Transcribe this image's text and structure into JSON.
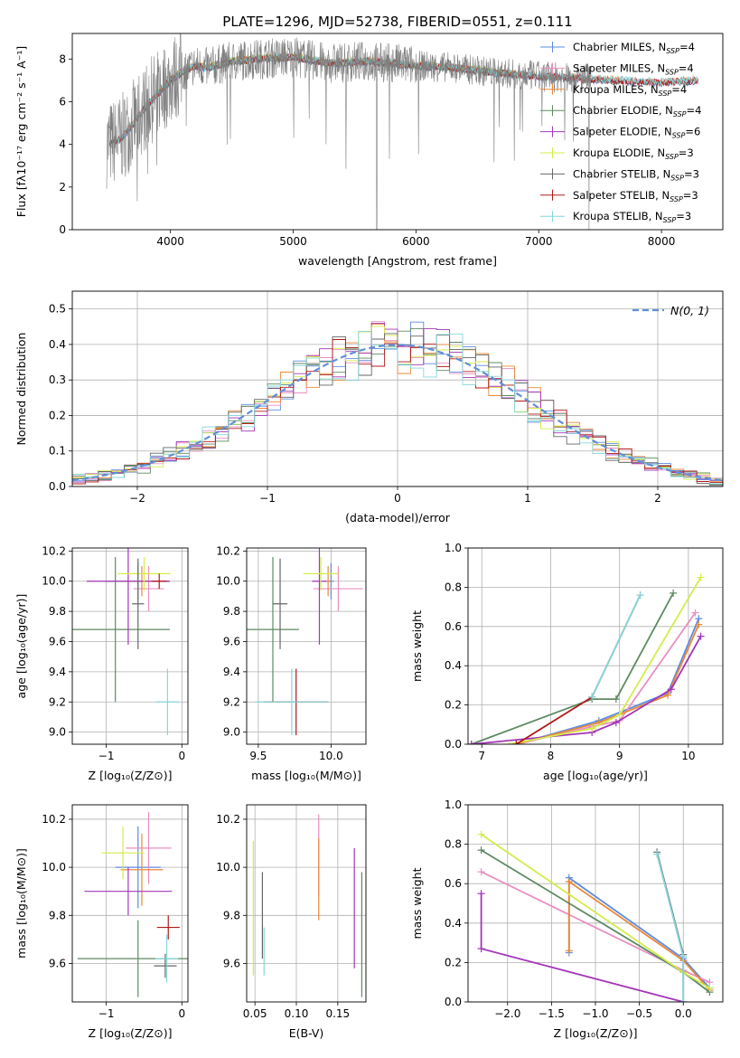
{
  "title": "PLATE=1296, MJD=52738, FIBERID=0551, z=0.111",
  "colors": {
    "chabrier_miles": "#5b8ce0",
    "salpeter_miles": "#e98fc0",
    "kroupa_miles": "#e8893a",
    "chabrier_elodie": "#5e8a62",
    "salpeter_elodie": "#a236b8",
    "kroupa_elodie": "#d4ec4a",
    "chabrier_stelib": "#666666",
    "salpeter_stelib": "#b01a1a",
    "kroupa_stelib": "#86d7da",
    "gauss": "#6090d8"
  },
  "chart_data": [
    {
      "id": "spectrum",
      "type": "line",
      "title": "",
      "xlabel": "wavelength [Angstrom, rest frame]",
      "ylabel": "Flux [fλ10⁻¹⁷ erg cm⁻² s⁻¹ A⁻¹]",
      "xlim": [
        3200,
        8500
      ],
      "ylim": [
        0,
        9.2
      ],
      "xticks": [
        4000,
        5000,
        6000,
        7000,
        8000
      ],
      "yticks": [
        0,
        2,
        4,
        6,
        8
      ],
      "grid": false,
      "legend_position": "right",
      "legend": [
        {
          "label": "Chabrier MILES, N",
          "sub": "SSP",
          "n": "4",
          "color_key": "chabrier_miles"
        },
        {
          "label": "Salpeter MILES, N",
          "sub": "SSP",
          "n": "4",
          "color_key": "salpeter_miles"
        },
        {
          "label": "Kroupa MILES, N",
          "sub": "SSP",
          "n": "4",
          "color_key": "kroupa_miles"
        },
        {
          "label": "Chabrier ELODIE, N",
          "sub": "SSP",
          "n": "4",
          "color_key": "chabrier_elodie"
        },
        {
          "label": "Salpeter ELODIE, N",
          "sub": "SSP",
          "n": "6",
          "color_key": "salpeter_elodie"
        },
        {
          "label": "Kroupa ELODIE, N",
          "sub": "SSP",
          "n": "3",
          "color_key": "kroupa_elodie"
        },
        {
          "label": "Chabrier STELIB, N",
          "sub": "SSP",
          "n": "3",
          "color_key": "chabrier_stelib"
        },
        {
          "label": "Salpeter STELIB, N",
          "sub": "SSP",
          "n": "3",
          "color_key": "salpeter_stelib"
        },
        {
          "label": "Kroupa STELIB, N",
          "sub": "SSP",
          "n": "3",
          "color_key": "kroupa_stelib"
        }
      ],
      "series_continuum": {
        "x": [
          3500,
          3600,
          3700,
          3800,
          3900,
          4000,
          4100,
          4200,
          4300,
          4500,
          4700,
          5000,
          5300,
          5600,
          6000,
          6300,
          6600,
          7000,
          7300,
          7600,
          8000,
          8300
        ],
        "y": [
          4.0,
          4.3,
          5.0,
          5.8,
          6.4,
          7.0,
          7.4,
          7.7,
          7.6,
          7.9,
          8.0,
          8.1,
          7.8,
          7.9,
          7.7,
          7.6,
          7.4,
          7.2,
          7.1,
          7.0,
          6.9,
          7.0
        ]
      }
    },
    {
      "id": "residuals",
      "type": "bar",
      "title": "",
      "xlabel": "(data-model)/error",
      "ylabel": "Normed distribution",
      "xlim": [
        -2.5,
        2.5
      ],
      "ylim": [
        0,
        0.55
      ],
      "xticks": [
        -2,
        -1,
        0,
        1,
        2
      ],
      "yticks": [
        0.0,
        0.1,
        0.2,
        0.3,
        0.4,
        0.5
      ],
      "grid": true,
      "legend_position": "top-right",
      "gauss_label": "N(0, 1)",
      "bin_width": 0.1,
      "bin_start": -2.5,
      "bin_count": 50
    },
    {
      "id": "age_vs_Z",
      "type": "scatter",
      "xlabel": "Z [log₁₀(Z/Z⊙)]",
      "ylabel": "age  [log₁₀(age/yr)]",
      "xlim": [
        -1.45,
        0.08
      ],
      "ylim": [
        8.92,
        10.22
      ],
      "xticks": [
        -1,
        0
      ],
      "yticks": [
        9.0,
        9.2,
        9.4,
        9.6,
        9.8,
        10.0,
        10.2
      ],
      "grid": true,
      "points": [
        {
          "c": "chabrier_miles",
          "x": -0.58,
          "xerr": 0.42,
          "y": 10.0,
          "yerr": 0.12
        },
        {
          "c": "salpeter_miles",
          "x": -0.44,
          "xerr": 0.2,
          "y": 9.95,
          "yerr": 0.15
        },
        {
          "c": "kroupa_miles",
          "x": -0.53,
          "xerr": 0.3,
          "y": 10.0,
          "yerr": 0.1
        },
        {
          "c": "chabrier_elodie",
          "x": -0.88,
          "xerr": 0.72,
          "y": 9.68,
          "yerr": 0.48
        },
        {
          "c": "salpeter_elodie",
          "x": -0.71,
          "xerr": 0.55,
          "y": 10.0,
          "yerr": 0.42
        },
        {
          "c": "kroupa_elodie",
          "x": -0.5,
          "xerr": 0.35,
          "y": 10.05,
          "yerr": 0.11
        },
        {
          "c": "chabrier_stelib",
          "x": -0.58,
          "xerr": 0.08,
          "y": 9.85,
          "yerr": 0.3
        },
        {
          "c": "salpeter_stelib",
          "x": -0.3,
          "xerr": 0.1,
          "y": 10.0,
          "yerr": 0.05
        },
        {
          "c": "kroupa_stelib",
          "x": -0.19,
          "xerr": 0.15,
          "y": 9.2,
          "yerr": 0.22
        }
      ]
    },
    {
      "id": "age_vs_mass",
      "type": "scatter",
      "xlabel": "mass [log₁₀(M/M⊙)]",
      "ylabel": "",
      "xlim": [
        9.42,
        10.24
      ],
      "ylim": [
        8.92,
        10.22
      ],
      "xticks": [
        9.5,
        10.0
      ],
      "yticks": [
        9.0,
        9.2,
        9.4,
        9.6,
        9.8,
        10.0,
        10.2
      ],
      "grid": true,
      "points": [
        {
          "c": "chabrier_miles",
          "x": 10.0,
          "xerr": 0.02,
          "y": 10.0,
          "yerr": 0.12
        },
        {
          "c": "salpeter_miles",
          "x": 10.05,
          "xerr": 0.17,
          "y": 9.95,
          "yerr": 0.15
        },
        {
          "c": "kroupa_miles",
          "x": 9.98,
          "xerr": 0.02,
          "y": 10.0,
          "yerr": 0.1
        },
        {
          "c": "chabrier_elodie",
          "x": 9.6,
          "xerr": 0.18,
          "y": 9.68,
          "yerr": 0.48
        },
        {
          "c": "salpeter_elodie",
          "x": 9.92,
          "xerr": 0.05,
          "y": 10.0,
          "yerr": 0.42
        },
        {
          "c": "kroupa_elodie",
          "x": 9.93,
          "xerr": 0.12,
          "y": 10.05,
          "yerr": 0.11
        },
        {
          "c": "chabrier_stelib",
          "x": 9.65,
          "xerr": 0.05,
          "y": 9.85,
          "yerr": 0.3
        },
        {
          "c": "salpeter_stelib",
          "x": 9.76,
          "xerr": 0.22,
          "y": 9.2,
          "yerr": 0.22
        },
        {
          "c": "kroupa_stelib",
          "x": 9.73,
          "xerr": 0.25,
          "y": 9.2,
          "yerr": 0.22
        }
      ]
    },
    {
      "id": "massweight_vs_age",
      "type": "line",
      "xlabel": "age  [log₁₀(age/yr)]",
      "ylabel": "mass weight",
      "xlim": [
        6.8,
        10.5
      ],
      "ylim": [
        0,
        1.0
      ],
      "xticks": [
        7,
        8,
        9,
        10
      ],
      "yticks": [
        0.0,
        0.2,
        0.4,
        0.6,
        0.8,
        1.0
      ],
      "grid": true,
      "series": [
        {
          "c": "chabrier_miles",
          "x": [
            7.5,
            8.7,
            9.7,
            10.15
          ],
          "y": [
            0.0,
            0.12,
            0.26,
            0.64
          ]
        },
        {
          "c": "salpeter_miles",
          "x": [
            7.5,
            8.6,
            9.0,
            10.1
          ],
          "y": [
            0.0,
            0.09,
            0.12,
            0.67
          ]
        },
        {
          "c": "kroupa_miles",
          "x": [
            7.5,
            8.7,
            9.7,
            10.15
          ],
          "y": [
            0.0,
            0.11,
            0.25,
            0.61
          ]
        },
        {
          "c": "chabrier_elodie",
          "x": [
            6.85,
            8.6,
            8.95,
            9.78
          ],
          "y": [
            0.0,
            0.23,
            0.23,
            0.77
          ]
        },
        {
          "c": "salpeter_elodie",
          "x": [
            6.85,
            8.6,
            8.95,
            9.75,
            10.18
          ],
          "y": [
            0.0,
            0.06,
            0.11,
            0.28,
            0.55
          ]
        },
        {
          "c": "kroupa_elodie",
          "x": [
            7.4,
            8.6,
            9.0,
            10.18
          ],
          "y": [
            0.0,
            0.08,
            0.15,
            0.85
          ]
        },
        {
          "c": "chabrier_stelib",
          "x": [
            8.6,
            9.3
          ],
          "y": [
            0.24,
            0.76
          ]
        },
        {
          "c": "salpeter_stelib",
          "x": [
            7.5,
            8.6
          ],
          "y": [
            0.0,
            0.24
          ]
        },
        {
          "c": "kroupa_stelib",
          "x": [
            8.6,
            9.3
          ],
          "y": [
            0.24,
            0.76
          ]
        }
      ]
    },
    {
      "id": "mass_vs_Z",
      "type": "scatter",
      "xlabel": "Z [log₁₀(Z/Z⊙)]",
      "ylabel": "mass [log₁₀(M/M⊙)]",
      "xlim": [
        -1.45,
        0.08
      ],
      "ylim": [
        9.44,
        10.26
      ],
      "xticks": [
        -1,
        0
      ],
      "yticks": [
        9.6,
        9.8,
        10.0,
        10.2
      ],
      "grid": true,
      "points": [
        {
          "c": "chabrier_miles",
          "x": -0.58,
          "xerr": 0.3,
          "y": 10.0,
          "yerr": 0.17
        },
        {
          "c": "salpeter_miles",
          "x": -0.44,
          "xerr": 0.3,
          "y": 10.08,
          "yerr": 0.15
        },
        {
          "c": "kroupa_miles",
          "x": -0.53,
          "xerr": 0.28,
          "y": 9.99,
          "yerr": 0.15
        },
        {
          "c": "chabrier_elodie",
          "x": -0.58,
          "xerr": 0.8,
          "y": 9.62,
          "yerr": 0.16
        },
        {
          "c": "salpeter_elodie",
          "x": -0.71,
          "xerr": 0.58,
          "y": 9.9,
          "yerr": 0.1
        },
        {
          "c": "kroupa_elodie",
          "x": -0.78,
          "xerr": 0.28,
          "y": 10.06,
          "yerr": 0.11
        },
        {
          "c": "chabrier_stelib",
          "x": -0.22,
          "xerr": 0.15,
          "y": 9.59,
          "yerr": 0.05
        },
        {
          "c": "salpeter_stelib",
          "x": -0.18,
          "xerr": 0.15,
          "y": 9.75,
          "yerr": 0.05
        },
        {
          "c": "kroupa_stelib",
          "x": -0.2,
          "xerr": 0.15,
          "y": 9.62,
          "yerr": 0.1
        }
      ]
    },
    {
      "id": "mass_vs_ebv",
      "type": "scatter",
      "xlabel": "E(B-V)",
      "ylabel": "",
      "xlim": [
        0.04,
        0.184
      ],
      "ylim": [
        9.44,
        10.26
      ],
      "xticks": [
        0.05,
        0.1,
        0.15
      ],
      "yticks": [
        9.6,
        9.8,
        10.0,
        10.2
      ],
      "grid": true,
      "points": [
        {
          "c": "kroupa_elodie",
          "x": 0.048,
          "y": 9.83,
          "yerr": 0.28
        },
        {
          "c": "chabrier_stelib",
          "x": 0.059,
          "y": 9.8,
          "yerr": 0.18
        },
        {
          "c": "kroupa_stelib",
          "x": 0.061,
          "y": 9.65,
          "yerr": 0.1
        },
        {
          "c": "salpeter_miles",
          "x": 0.127,
          "y": 10.05,
          "yerr": 0.17
        },
        {
          "c": "kroupa_miles",
          "x": 0.127,
          "y": 9.95,
          "yerr": 0.17
        },
        {
          "c": "salpeter_elodie",
          "x": 0.17,
          "y": 9.83,
          "yerr": 0.25
        },
        {
          "c": "chabrier_elodie",
          "x": 0.179,
          "y": 9.72,
          "yerr": 0.26
        }
      ]
    },
    {
      "id": "massweight_vs_Z",
      "type": "line",
      "xlabel": "Z [log₁₀(Z/Z⊙)]",
      "ylabel": "mass weight",
      "xlim": [
        -2.45,
        0.45
      ],
      "ylim": [
        0,
        1.0
      ],
      "xticks": [
        -2.0,
        -1.5,
        -1.0,
        -0.5,
        0.0
      ],
      "yticks": [
        0.0,
        0.2,
        0.4,
        0.6,
        0.8,
        1.0
      ],
      "grid": true,
      "series": [
        {
          "c": "chabrier_miles",
          "x": [
            -1.3,
            -1.3,
            0.0,
            0.3
          ],
          "y": [
            0.25,
            0.63,
            0.22,
            0.07
          ]
        },
        {
          "c": "salpeter_miles",
          "x": [
            -2.3,
            0.0,
            0.3
          ],
          "y": [
            0.66,
            0.16,
            0.1
          ]
        },
        {
          "c": "kroupa_miles",
          "x": [
            -1.3,
            -1.3,
            0.0,
            0.3
          ],
          "y": [
            0.26,
            0.61,
            0.21,
            0.06
          ]
        },
        {
          "c": "chabrier_elodie",
          "x": [
            -2.3,
            0.0,
            0.3
          ],
          "y": [
            0.77,
            0.15,
            0.05
          ]
        },
        {
          "c": "salpeter_elodie",
          "x": [
            -2.3,
            -2.3,
            0.0
          ],
          "y": [
            0.55,
            0.27,
            0.0
          ]
        },
        {
          "c": "kroupa_elodie",
          "x": [
            -2.3,
            0.0,
            0.3
          ],
          "y": [
            0.85,
            0.15,
            0.07
          ]
        },
        {
          "c": "chabrier_stelib",
          "x": [
            -0.3,
            0.0,
            0.0
          ],
          "y": [
            0.76,
            0.24,
            0.0
          ]
        },
        {
          "c": "kroupa_stelib",
          "x": [
            -0.3,
            0.0,
            0.0
          ],
          "y": [
            0.75,
            0.23,
            0.0
          ]
        }
      ]
    }
  ]
}
